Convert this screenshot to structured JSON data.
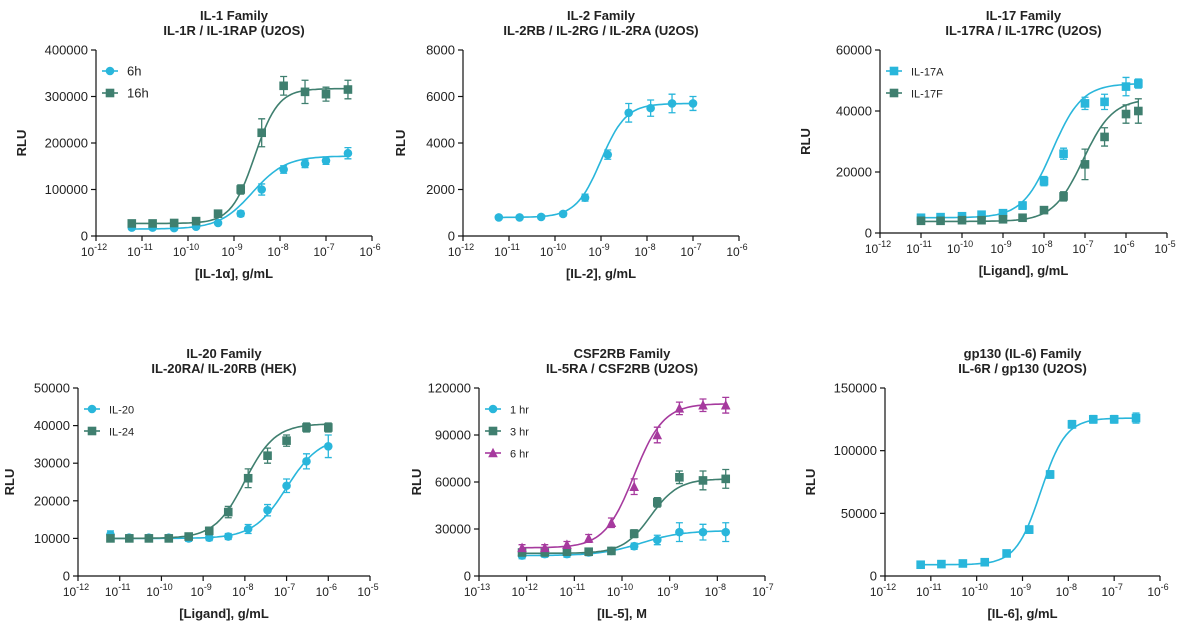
{
  "colors": {
    "cyan": "#29B6DB",
    "green": "#3F7F6F",
    "magenta": "#A63A9E",
    "axis": "#111111"
  },
  "chart_data": [
    {
      "type": "scatter",
      "title": "IL-1 Family",
      "subtitle": "IL-1R / IL-1RAP (U2OS)",
      "xlabel": "[IL-1α], g/mL",
      "ylabel": "RLU",
      "xscale": "log",
      "xlim_exp": [
        -12,
        -6
      ],
      "ylim": [
        0,
        400000
      ],
      "yticks": [
        0,
        100000,
        200000,
        300000,
        400000
      ],
      "ytick_labels": [
        "0",
        "100000",
        "200000",
        "300000",
        "400000"
      ],
      "legend": "top-left",
      "series": [
        {
          "name": "6h",
          "marker": "circle",
          "color": "#29B6DB",
          "fit": {
            "bottom": 15000,
            "top": 172000,
            "logec50": -8.6,
            "hill": 1.2
          },
          "x": [
            6e-12,
            1.7e-11,
            5e-11,
            1.5e-10,
            4.5e-10,
            1.4e-09,
            4e-09,
            1.2e-08,
            3.5e-08,
            1e-07,
            3e-07
          ],
          "y": [
            18000,
            18000,
            17000,
            20000,
            28000,
            48000,
            100000,
            143000,
            155000,
            162000,
            178000
          ],
          "err": [
            4000,
            4000,
            3000,
            3000,
            4000,
            6000,
            12000,
            8000,
            8000,
            8000,
            12000
          ]
        },
        {
          "name": "16h",
          "marker": "square",
          "color": "#3F7F6F",
          "fit": {
            "bottom": 27000,
            "top": 317000,
            "logec50": -8.55,
            "hill": 1.7
          },
          "x": [
            6e-12,
            1.7e-11,
            5e-11,
            1.5e-10,
            4.5e-10,
            1.4e-09,
            4e-09,
            1.2e-08,
            3.5e-08,
            1e-07,
            3e-07
          ],
          "y": [
            27000,
            27000,
            28000,
            32000,
            48000,
            100000,
            222000,
            323000,
            310000,
            305000,
            315000
          ],
          "err": [
            4000,
            4000,
            4000,
            4000,
            6000,
            10000,
            30000,
            20000,
            25000,
            15000,
            20000
          ]
        }
      ]
    },
    {
      "type": "scatter",
      "title": "IL-2 Family",
      "subtitle": "IL-2RB / IL-2RG / IL-2RA (U2OS)",
      "xlabel": "[IL-2], g/mL",
      "ylabel": "RLU",
      "xscale": "log",
      "xlim_exp": [
        -12,
        -6
      ],
      "ylim": [
        0,
        8000
      ],
      "yticks": [
        0,
        2000,
        4000,
        6000,
        8000
      ],
      "ytick_labels": [
        "0",
        "2000",
        "4000",
        "6000",
        "8000"
      ],
      "legend": "none",
      "series": [
        {
          "name": "",
          "marker": "circle",
          "color": "#29B6DB",
          "fit": {
            "bottom": 800,
            "top": 5700,
            "logec50": -9.0,
            "hill": 1.6
          },
          "x": [
            6e-12,
            1.7e-11,
            5e-11,
            1.5e-10,
            4.5e-10,
            1.4e-09,
            4e-09,
            1.2e-08,
            3.5e-08,
            1e-07
          ],
          "y": [
            800,
            800,
            820,
            950,
            1650,
            3500,
            5300,
            5500,
            5700,
            5700
          ],
          "err": [
            80,
            80,
            80,
            100,
            150,
            200,
            400,
            350,
            400,
            300
          ]
        }
      ]
    },
    {
      "type": "scatter",
      "title": "IL-17 Family",
      "subtitle": "IL-17RA / IL-17RC (U2OS)",
      "xlabel": "[Ligand], g/mL",
      "ylabel": "RLU",
      "xscale": "log",
      "xlim_exp": [
        -12,
        -5
      ],
      "ylim": [
        0,
        60000
      ],
      "yticks": [
        0,
        20000,
        40000,
        60000
      ],
      "ytick_labels": [
        "0",
        "20000",
        "40000",
        "60000"
      ],
      "legend": "top-left",
      "series": [
        {
          "name": "IL-17A",
          "marker": "square",
          "color": "#29B6DB",
          "fit": {
            "bottom": 5000,
            "top": 49000,
            "logec50": -7.8,
            "hill": 1.2
          },
          "x": [
            1e-11,
            3e-11,
            1e-10,
            3e-10,
            1e-09,
            3e-09,
            1e-08,
            3e-08,
            1e-07,
            3e-07,
            1e-06,
            2e-06
          ],
          "y": [
            5000,
            5200,
            5500,
            6000,
            6500,
            9000,
            17000,
            26000,
            42500,
            43000,
            48000,
            49000
          ],
          "err": [
            800,
            800,
            800,
            900,
            900,
            1200,
            1500,
            1800,
            2000,
            2500,
            3000,
            1500
          ]
        },
        {
          "name": "IL-17F",
          "marker": "square",
          "color": "#3F7F6F",
          "fit": {
            "bottom": 3800,
            "top": 44000,
            "logec50": -7.05,
            "hill": 1.2
          },
          "x": [
            1e-11,
            3e-11,
            1e-10,
            3e-10,
            1e-09,
            3e-09,
            1e-08,
            3e-08,
            1e-07,
            3e-07,
            1e-06,
            2e-06
          ],
          "y": [
            4000,
            4000,
            4200,
            4200,
            4500,
            5000,
            7500,
            12000,
            22500,
            31500,
            39000,
            40000
          ],
          "err": [
            700,
            700,
            700,
            700,
            700,
            800,
            1000,
            1500,
            5000,
            3000,
            3000,
            4000
          ]
        }
      ]
    },
    {
      "type": "scatter",
      "title": "IL-20 Family",
      "subtitle": "IL-20RA/ IL-20RB (HEK)",
      "xlabel": "[Ligand], g/mL",
      "ylabel": "RLU",
      "xscale": "log",
      "xlim_exp": [
        -12,
        -5
      ],
      "ylim": [
        0,
        50000
      ],
      "yticks": [
        0,
        10000,
        20000,
        30000,
        40000,
        50000
      ],
      "ytick_labels": [
        "0",
        "10000",
        "20000",
        "30000",
        "40000",
        "50000"
      ],
      "legend": "top-left",
      "series": [
        {
          "name": "IL-20",
          "marker": "circle",
          "color": "#29B6DB",
          "fit": {
            "bottom": 10000,
            "top": 37000,
            "logec50": -7.0,
            "hill": 1.1
          },
          "x": [
            6e-12,
            1.7e-11,
            5e-11,
            1.5e-10,
            4.5e-10,
            1.4e-09,
            4e-09,
            1.2e-08,
            3.5e-08,
            1e-07,
            3e-07,
            1e-06
          ],
          "y": [
            11000,
            10200,
            10200,
            10200,
            10000,
            10200,
            10500,
            12500,
            17500,
            24000,
            30500,
            34500
          ],
          "err": [
            1000,
            800,
            800,
            800,
            800,
            800,
            800,
            1200,
            1500,
            1800,
            2000,
            3000
          ]
        },
        {
          "name": "IL-24",
          "marker": "square",
          "color": "#3F7F6F",
          "fit": {
            "bottom": 10000,
            "top": 40500,
            "logec50": -8.0,
            "hill": 1.2
          },
          "x": [
            6e-12,
            1.7e-11,
            5e-11,
            1.5e-10,
            4.5e-10,
            1.4e-09,
            4e-09,
            1.2e-08,
            3.5e-08,
            1e-07,
            3e-07,
            1e-06
          ],
          "y": [
            10000,
            10000,
            10000,
            10000,
            10500,
            12000,
            17000,
            26000,
            32000,
            36000,
            39500,
            39500
          ],
          "err": [
            800,
            800,
            800,
            800,
            800,
            1000,
            1500,
            2500,
            2000,
            1500,
            1200,
            1200
          ]
        }
      ]
    },
    {
      "type": "scatter",
      "title": "CSF2RB Family",
      "subtitle": "IL-5RA / CSF2RB (U2OS)",
      "xlabel": "[IL-5], M",
      "ylabel": "RLU",
      "xscale": "log",
      "xlim_exp": [
        -13,
        -7
      ],
      "ylim": [
        0,
        120000
      ],
      "yticks": [
        0,
        30000,
        60000,
        90000,
        120000
      ],
      "ytick_labels": [
        "0",
        "30000",
        "60000",
        "90000",
        "120000"
      ],
      "legend": "top-left",
      "series": [
        {
          "name": "1 hr",
          "marker": "circle",
          "color": "#29B6DB",
          "fit": {
            "bottom": 13000,
            "top": 29000,
            "logec50": -9.6,
            "hill": 1.0
          },
          "x": [
            8e-13,
            2.4e-12,
            7e-12,
            2e-11,
            6e-11,
            1.8e-10,
            5.5e-10,
            1.6e-09,
            5e-09,
            1.5e-08
          ],
          "y": [
            13000,
            14000,
            14000,
            15000,
            16000,
            19000,
            23000,
            28000,
            28000,
            28000
          ],
          "err": [
            2000,
            2000,
            2000,
            2000,
            2000,
            2000,
            3000,
            6000,
            5000,
            6000
          ]
        },
        {
          "name": "3 hr",
          "marker": "square",
          "color": "#3F7F6F",
          "fit": {
            "bottom": 14500,
            "top": 62000,
            "logec50": -9.4,
            "hill": 1.5
          },
          "x": [
            8e-13,
            2.4e-12,
            7e-12,
            2e-11,
            6e-11,
            1.8e-10,
            5.5e-10,
            1.6e-09,
            5e-09,
            1.5e-08
          ],
          "y": [
            15000,
            15000,
            15500,
            15500,
            16000,
            27000,
            47000,
            63000,
            61000,
            62000
          ],
          "err": [
            2000,
            2000,
            2000,
            2000,
            2000,
            2500,
            3000,
            4000,
            6000,
            6000
          ]
        },
        {
          "name": "6 hr",
          "marker": "triangle",
          "color": "#A63A9E",
          "fit": {
            "bottom": 18000,
            "top": 110000,
            "logec50": -9.75,
            "hill": 1.4
          },
          "x": [
            8e-13,
            2.4e-12,
            7e-12,
            2e-11,
            6e-11,
            1.8e-10,
            5.5e-10,
            1.6e-09,
            5e-09,
            1.5e-08
          ],
          "y": [
            18000,
            18000,
            20000,
            24000,
            34000,
            57000,
            90000,
            107000,
            109000,
            109000
          ],
          "err": [
            2000,
            2000,
            2000,
            2500,
            3000,
            5000,
            5000,
            4000,
            4000,
            5000
          ]
        }
      ]
    },
    {
      "type": "scatter",
      "title": "gp130 (IL-6) Family",
      "subtitle": "IL-6R / gp130 (U2OS)",
      "xlabel": "[IL-6], g/mL",
      "ylabel": "RLU",
      "xscale": "log",
      "xlim_exp": [
        -12,
        -6
      ],
      "ylim": [
        0,
        150000
      ],
      "yticks": [
        0,
        50000,
        100000,
        150000
      ],
      "ytick_labels": [
        "0",
        "50000",
        "100000",
        "150000"
      ],
      "legend": "none",
      "series": [
        {
          "name": "",
          "marker": "square",
          "color": "#29B6DB",
          "fit": {
            "bottom": 9000,
            "top": 126000,
            "logec50": -8.6,
            "hill": 1.6
          },
          "x": [
            6e-12,
            1.7e-11,
            5e-11,
            1.5e-10,
            4.5e-10,
            1.4e-09,
            4e-09,
            1.2e-08,
            3.5e-08,
            1e-07,
            3e-07
          ],
          "y": [
            9000,
            9500,
            10000,
            11000,
            18000,
            37000,
            81000,
            121000,
            125000,
            125000,
            126000
          ],
          "err": [
            1000,
            1000,
            1000,
            1000,
            1500,
            3000,
            3000,
            3000,
            3000,
            3000,
            4000
          ]
        }
      ]
    }
  ]
}
